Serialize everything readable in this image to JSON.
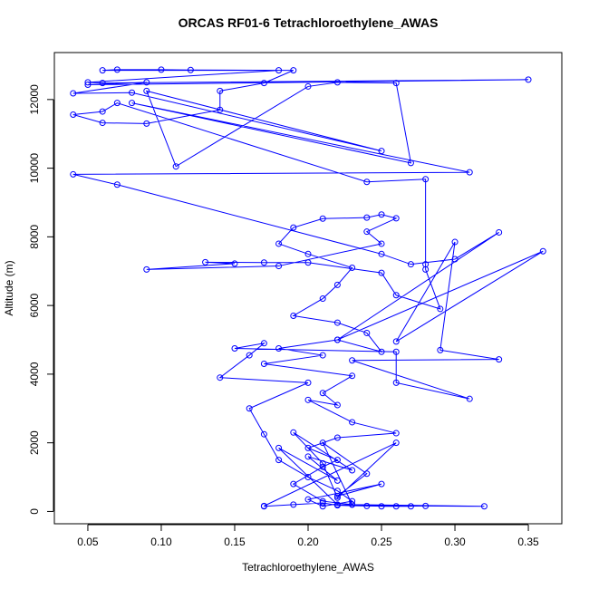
{
  "chart_data": {
    "type": "line",
    "title": "ORCAS RF01-6 Tetrachloroethylene_AWAS",
    "x_label": "Tetrachloroethylene_AWAS",
    "y_label": "Altitude (m)",
    "color": "#0000ff",
    "markers": true,
    "xlim": [
      0.0272,
      0.3728
    ],
    "ylim": [
      -358,
      13368
    ],
    "xticks": [
      0.05,
      {
        "value": 0.1,
        "label": "0.10"
      },
      0.15,
      {
        "value": 0.2,
        "label": "0.20"
      },
      0.25,
      {
        "value": 0.3,
        "label": "0.30"
      },
      0.35
    ],
    "yticks": [
      0,
      2000,
      4000,
      6000,
      8000,
      10000,
      12000
    ],
    "x": [
      0.17,
      0.19,
      0.21,
      0.22,
      0.24,
      0.26,
      0.28,
      0.32,
      0.23,
      0.21,
      0.19,
      0.21,
      0.22,
      0.2,
      0.22,
      0.26,
      0.23,
      0.2,
      0.22,
      0.21,
      0.23,
      0.17,
      0.21,
      0.18,
      0.22,
      0.25,
      0.24,
      0.22,
      0.19,
      0.21,
      0.22,
      0.23,
      0.2,
      0.18,
      0.19,
      0.21,
      0.24,
      0.25,
      0.26,
      0.24,
      0.25,
      0.18,
      0.09,
      0.15,
      0.13,
      0.17,
      0.2,
      0.25,
      0.26,
      0.29,
      0.28,
      0.28,
      0.28,
      0.24,
      0.07,
      0.06,
      0.04,
      0.06,
      0.09,
      0.14,
      0.14,
      0.17,
      0.19,
      0.06,
      0.07,
      0.1,
      0.12,
      0.18,
      0.05,
      0.06,
      0.35,
      0.05,
      0.09,
      0.04,
      0.08,
      0.25,
      0.09,
      0.11,
      0.2,
      0.22,
      0.26,
      0.27,
      0.08,
      0.31,
      0.04,
      0.07,
      0.25,
      0.27,
      0.3,
      0.33,
      0.22,
      0.36,
      0.26,
      0.3,
      0.29,
      0.33,
      0.23,
      0.31,
      0.26,
      0.26,
      0.15,
      0.17,
      0.16,
      0.14,
      0.2,
      0.16,
      0.17,
      0.18,
      0.2,
      0.22,
      0.23,
      0.21,
      0.2,
      0.25,
      0.22,
      0.24,
      0.21,
      0.23,
      0.25,
      0.27,
      0.22,
      0.18,
      0.22,
      0.2,
      0.23,
      0.19,
      0.21,
      0.22,
      0.26,
      0.17
    ],
    "values": [
      150,
      200,
      250,
      180,
      160,
      150,
      160,
      150,
      200,
      300,
      800,
      1300,
      1500,
      1850,
      2150,
      2280,
      2600,
      3250,
      3100,
      3450,
      3950,
      4300,
      4550,
      4750,
      5000,
      4650,
      5200,
      5500,
      5700,
      6200,
      6600,
      7100,
      7500,
      7800,
      8270,
      8530,
      8560,
      8650,
      8540,
      8150,
      7800,
      7150,
      7050,
      7220,
      7260,
      7250,
      7250,
      6950,
      6300,
      5900,
      7050,
      7200,
      9680,
      9600,
      11900,
      11650,
      11560,
      11320,
      11300,
      11700,
      12250,
      12480,
      12850,
      12850,
      12870,
      12870,
      12860,
      12850,
      12500,
      12480,
      12580,
      12430,
      12500,
      12180,
      12200,
      10500,
      12250,
      10050,
      12380,
      12500,
      12480,
      10150,
      11900,
      9880,
      9820,
      9520,
      7500,
      7200,
      7350,
      8130,
      5000,
      7580,
      4950,
      7850,
      4700,
      4430,
      4400,
      3280,
      3750,
      4650,
      4750,
      4900,
      4550,
      3900,
      3750,
      3000,
      2250,
      1500,
      1000,
      600,
      300,
      150,
      350,
      800,
      450,
      1100,
      2000,
      200,
      150,
      150,
      200,
      1850,
      900,
      1600,
      1200,
      2300,
      1400,
      400,
      2000,
      160
    ]
  }
}
